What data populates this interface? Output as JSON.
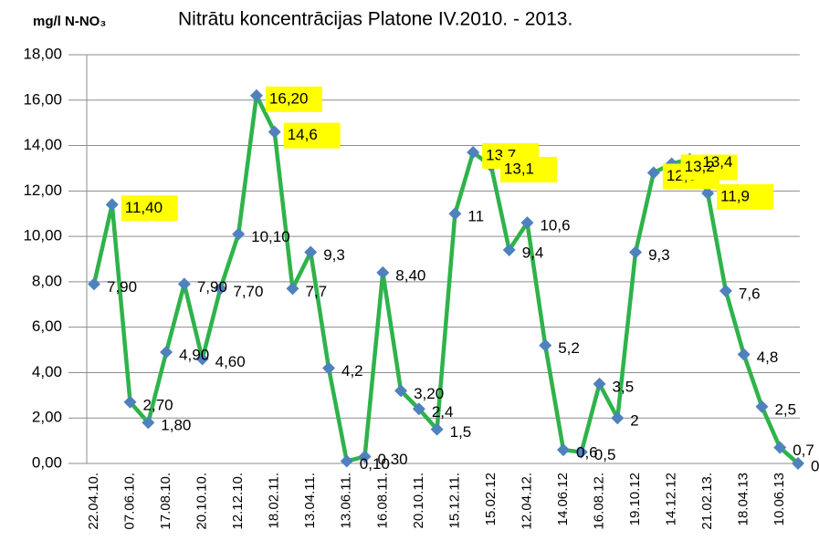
{
  "chart_data": {
    "type": "line",
    "title": "Nitrātu koncentrācijas Platone IV.2010. -  2013.",
    "y_label": "mg/l N-NO₃",
    "categories": [
      "22.04.10.",
      null,
      "07.06.10.",
      null,
      "17.08.10.",
      null,
      "20.10.10.",
      null,
      "12.12.10.",
      null,
      "18.02.11.",
      null,
      "13.04.11.",
      null,
      "13.06.11.",
      null,
      "16.08.11.",
      null,
      "20.10.11.",
      null,
      "15.12.11.",
      null,
      "15.02.12",
      null,
      "12.04.12.",
      null,
      "14.06.12",
      null,
      "16.08.12.",
      null,
      "19.10.12",
      null,
      "14.12.12",
      null,
      "21.02.13.",
      null,
      "18.04.13",
      null,
      "10.06.13",
      null
    ],
    "series": [
      {
        "name": "N-NO3",
        "color": "#2eb34a",
        "marker_color": "#4f81bd",
        "values": [
          7.9,
          11.4,
          2.7,
          1.8,
          4.9,
          7.9,
          4.6,
          7.7,
          10.1,
          16.2,
          14.6,
          7.7,
          9.3,
          4.2,
          0.1,
          0.3,
          8.4,
          3.2,
          2.4,
          1.5,
          11,
          13.7,
          13.1,
          9.4,
          10.6,
          5.2,
          0.6,
          0.5,
          3.5,
          2,
          9.3,
          12.8,
          13.2,
          13.4,
          11.9,
          7.6,
          4.8,
          2.5,
          0.7,
          0
        ],
        "value_labels": [
          "7,90",
          "11,40",
          "2,70",
          "1,80",
          "4,90",
          "7,90",
          "4,60",
          "7,70",
          "10,10",
          "16,20",
          "14,6",
          "7,7",
          "9,3",
          "4,2",
          "0,10",
          "0,30",
          "8,40",
          "3,20",
          "2,4",
          "1,5",
          "11",
          "13,7",
          "13,1",
          "9,4",
          "10,6",
          "5,2",
          "0,6",
          "0,5",
          "3,5",
          "2",
          "9,3",
          "12,8",
          "13,2",
          "13,4",
          "11,9",
          "7,6",
          "4,8",
          "2,5",
          "0,7",
          "0"
        ],
        "highlighted": [
          false,
          true,
          false,
          false,
          false,
          false,
          false,
          false,
          false,
          true,
          true,
          false,
          false,
          false,
          false,
          false,
          false,
          false,
          false,
          false,
          false,
          true,
          true,
          false,
          false,
          false,
          false,
          false,
          false,
          false,
          false,
          true,
          true,
          false,
          true,
          false,
          false,
          false,
          false,
          false
        ]
      }
    ],
    "highlight_color": "#ffff00",
    "ylim": [
      0,
      18
    ],
    "yticks": [
      {
        "value": 0,
        "label": "0,00"
      },
      {
        "value": 2,
        "label": "2,00"
      },
      {
        "value": 4,
        "label": "4,00"
      },
      {
        "value": 6,
        "label": "6,00"
      },
      {
        "value": 8,
        "label": "8,00"
      },
      {
        "value": 10,
        "label": "10,00"
      },
      {
        "value": 12,
        "label": "12,00"
      },
      {
        "value": 14,
        "label": "14,00"
      },
      {
        "value": 16,
        "label": "16,00"
      },
      {
        "value": 18,
        "label": "18,00"
      }
    ],
    "grid": true
  }
}
